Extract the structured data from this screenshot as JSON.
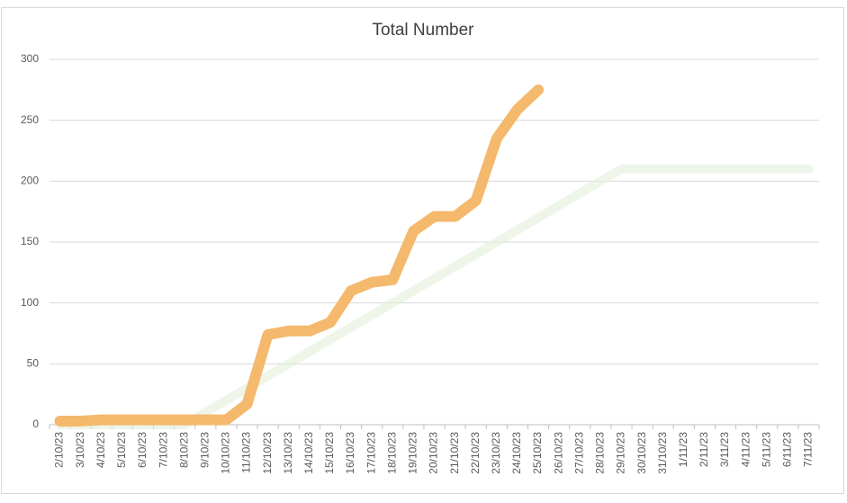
{
  "chart_data": {
    "type": "line",
    "title": "Total Number",
    "categories": [
      "2/10/23",
      "3/10/23",
      "4/10/23",
      "5/10/23",
      "6/10/23",
      "7/10/23",
      "8/10/23",
      "9/10/23",
      "10/10/23",
      "11/10/23",
      "12/10/23",
      "13/10/23",
      "14/10/23",
      "15/10/23",
      "16/10/23",
      "17/10/23",
      "18/10/23",
      "19/10/23",
      "20/10/23",
      "21/10/23",
      "22/10/23",
      "23/10/23",
      "24/10/23",
      "25/10/23",
      "26/10/23",
      "27/10/23",
      "28/10/23",
      "29/10/23",
      "30/10/23",
      "31/10/23",
      "1/11/23",
      "2/11/23",
      "3/11/23",
      "4/11/23",
      "5/11/23",
      "6/11/23",
      "7/11/23"
    ],
    "series": [
      {
        "color": "#e2efda",
        "values": [
          0,
          0,
          0,
          0,
          0,
          0,
          0,
          10,
          20,
          30,
          40,
          50,
          60,
          70,
          80,
          90,
          100,
          110,
          120,
          130,
          140,
          150,
          160,
          170,
          180,
          190,
          200,
          210,
          210,
          210,
          210,
          210,
          210,
          210,
          210,
          210,
          210
        ]
      },
      {
        "color": "#f4b96c",
        "values": [
          3,
          3,
          4,
          4,
          4,
          4,
          4,
          4,
          4,
          17,
          74,
          77,
          77,
          84,
          110,
          117,
          119,
          159,
          171,
          171,
          184,
          235,
          259,
          275,
          null,
          null,
          null,
          null,
          null,
          null,
          null,
          null,
          null,
          null,
          null,
          null,
          null
        ]
      }
    ],
    "ylim": [
      0,
      300
    ],
    "yticks": [
      0,
      50,
      100,
      150,
      200,
      250,
      300
    ],
    "grid": true
  }
}
